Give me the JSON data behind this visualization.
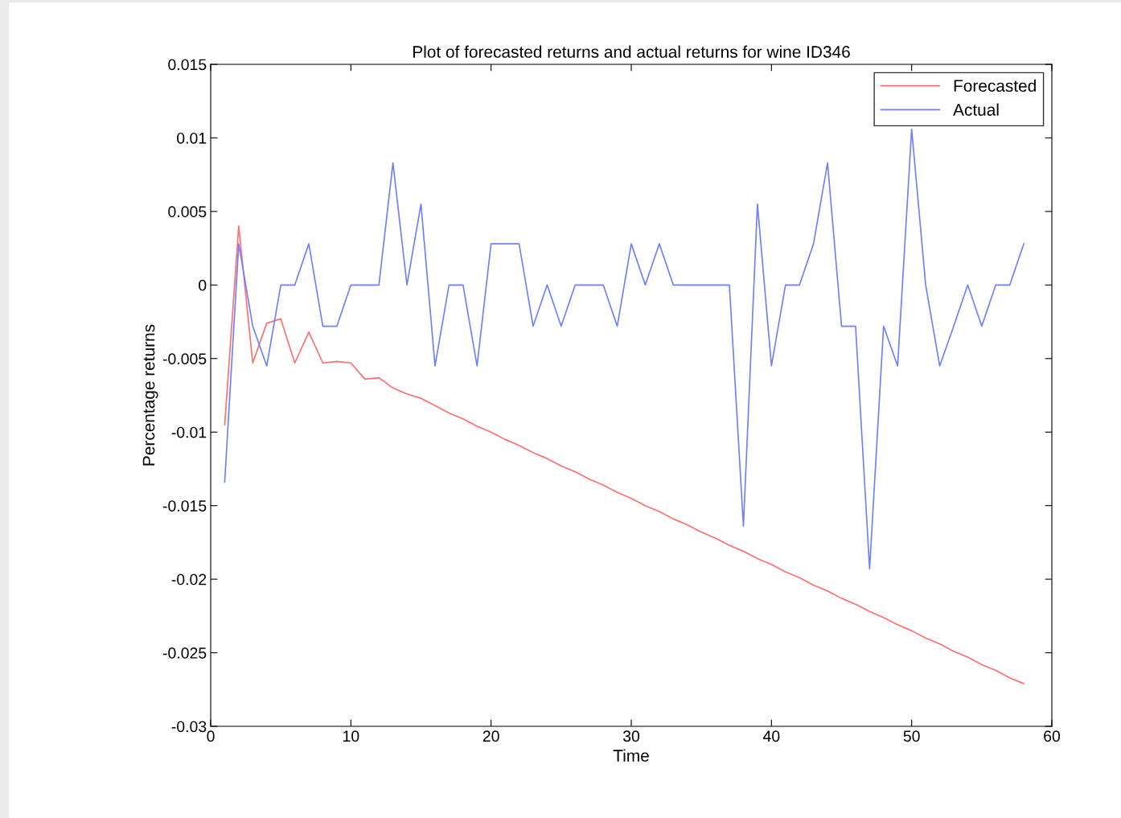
{
  "chart_data": {
    "type": "line",
    "title": "Plot of forecasted returns and actual returns for wine ID346",
    "xlabel": "Time",
    "ylabel": "Percentage returns",
    "x": [
      1,
      2,
      3,
      4,
      5,
      6,
      7,
      8,
      9,
      10,
      11,
      12,
      13,
      14,
      15,
      16,
      17,
      18,
      19,
      20,
      21,
      22,
      23,
      24,
      25,
      26,
      27,
      28,
      29,
      30,
      31,
      32,
      33,
      34,
      35,
      36,
      37,
      38,
      39,
      40,
      41,
      42,
      43,
      44,
      45,
      46,
      47,
      48,
      49,
      50,
      51,
      52,
      53,
      54,
      55,
      56,
      57,
      58
    ],
    "series": [
      {
        "name": "Forecasted",
        "color": "#ff6f6f",
        "values": [
          -0.0095,
          0.004,
          -0.0053,
          -0.0026,
          -0.0023,
          -0.0053,
          -0.0032,
          -0.0053,
          -0.0052,
          -0.0053,
          -0.0064,
          -0.0063,
          -0.007,
          -0.0074,
          -0.0077,
          -0.0082,
          -0.0087,
          -0.0091,
          -0.0096,
          -0.01,
          -0.0105,
          -0.0109,
          -0.0114,
          -0.0118,
          -0.0123,
          -0.0127,
          -0.0132,
          -0.0136,
          -0.0141,
          -0.0145,
          -0.015,
          -0.0154,
          -0.0159,
          -0.0163,
          -0.0168,
          -0.0172,
          -0.0177,
          -0.0181,
          -0.0186,
          -0.019,
          -0.0195,
          -0.0199,
          -0.0204,
          -0.0208,
          -0.0213,
          -0.0217,
          -0.0222,
          -0.0226,
          -0.0231,
          -0.0235,
          -0.024,
          -0.0244,
          -0.0249,
          -0.0253,
          -0.0258,
          -0.0262,
          -0.0267,
          -0.0271
        ]
      },
      {
        "name": "Actual",
        "color": "#6f80ff",
        "values": [
          -0.0134,
          0.0028,
          -0.0028,
          -0.0055,
          0,
          0,
          0.0028,
          -0.0028,
          -0.0028,
          0,
          0,
          0,
          0.0083,
          0,
          0.0055,
          -0.0055,
          0,
          0,
          -0.0055,
          0.0028,
          0.0028,
          0.0028,
          -0.0028,
          0,
          -0.0028,
          0,
          0,
          0,
          -0.0028,
          0.0028,
          0,
          0.0028,
          0,
          0,
          0,
          0,
          0,
          -0.0164,
          0.0055,
          -0.0055,
          0,
          0,
          0.0028,
          0.0083,
          -0.0028,
          -0.0028,
          -0.0193,
          -0.0028,
          -0.0055,
          0.0106,
          0,
          -0.0055,
          -0.0028,
          0,
          -0.0028,
          0,
          0,
          0.0028
        ]
      }
    ],
    "xlim": [
      0,
      60
    ],
    "xticks": [
      0,
      10,
      20,
      30,
      40,
      50,
      60
    ],
    "ylim": [
      -0.03,
      0.015
    ],
    "yticks": [
      -0.03,
      -0.025,
      -0.02,
      -0.015,
      -0.01,
      -0.005,
      0,
      0.005,
      0.01,
      0.015
    ],
    "legend": "top right",
    "grid": false,
    "marker": "none",
    "line_style": "solid"
  }
}
